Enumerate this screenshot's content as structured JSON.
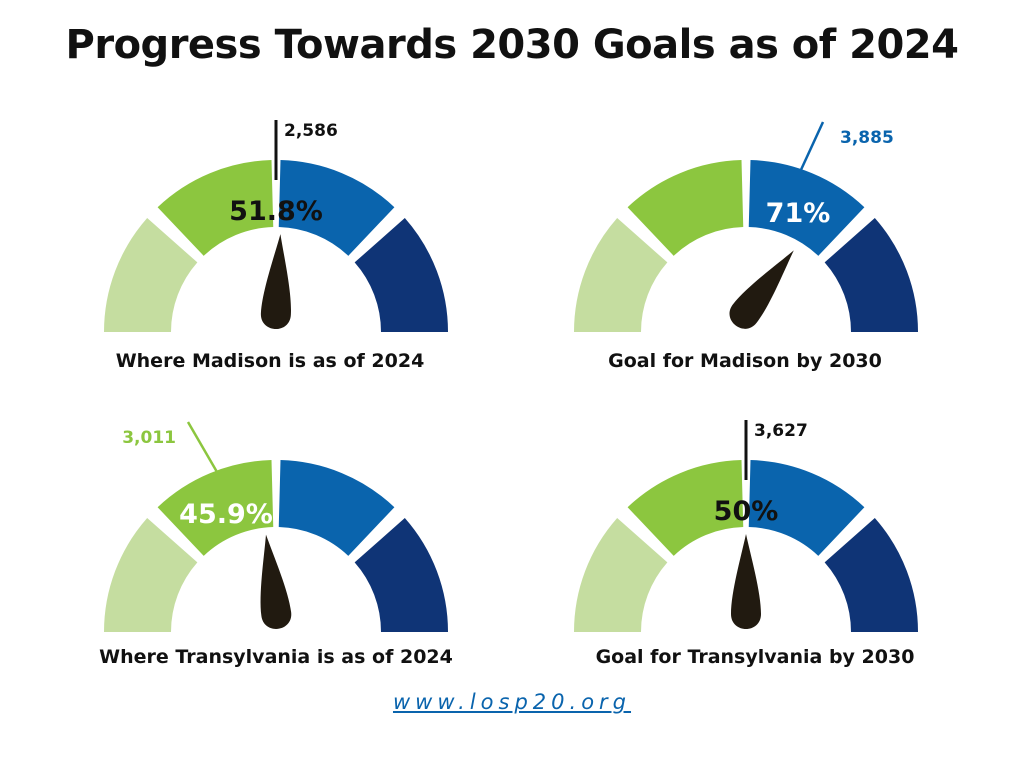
{
  "title": "Progress Towards 2030 Goals as of 2024",
  "footer": "www.losp20.org",
  "colors": {
    "segment_light_green": "#c5dda0",
    "segment_green": "#8cc63f",
    "segment_blue": "#0a64ad",
    "segment_navy": "#0f3476",
    "needle": "#211a10",
    "footer_link": "#0a64ad"
  },
  "chart_data": [
    {
      "type": "gauge",
      "caption": "Where Madison is as of 2024",
      "percent_label": "51.8%",
      "value": 51.8,
      "count_label": "2,586",
      "callout": "vertical",
      "callout_color": "#111111",
      "percent_color": "#111111"
    },
    {
      "type": "gauge",
      "caption": "Goal for Madison by 2030",
      "percent_label": "71%",
      "value": 71,
      "count_label": "3,885",
      "callout": "diagonal-right",
      "callout_color": "#0a64ad",
      "percent_color": "#ffffff"
    },
    {
      "type": "gauge",
      "caption": "Where Transylvania is as of 2024",
      "percent_label": "45.9%",
      "value": 45.9,
      "count_label": "3,011",
      "callout": "diagonal-left",
      "callout_color": "#8cc63f",
      "percent_color": "#ffffff"
    },
    {
      "type": "gauge",
      "caption": "Goal for Transylvania by 2030",
      "percent_label": "50%",
      "value": 50,
      "count_label": "3,627",
      "callout": "vertical",
      "callout_color": "#111111",
      "percent_color": "#111111"
    }
  ]
}
